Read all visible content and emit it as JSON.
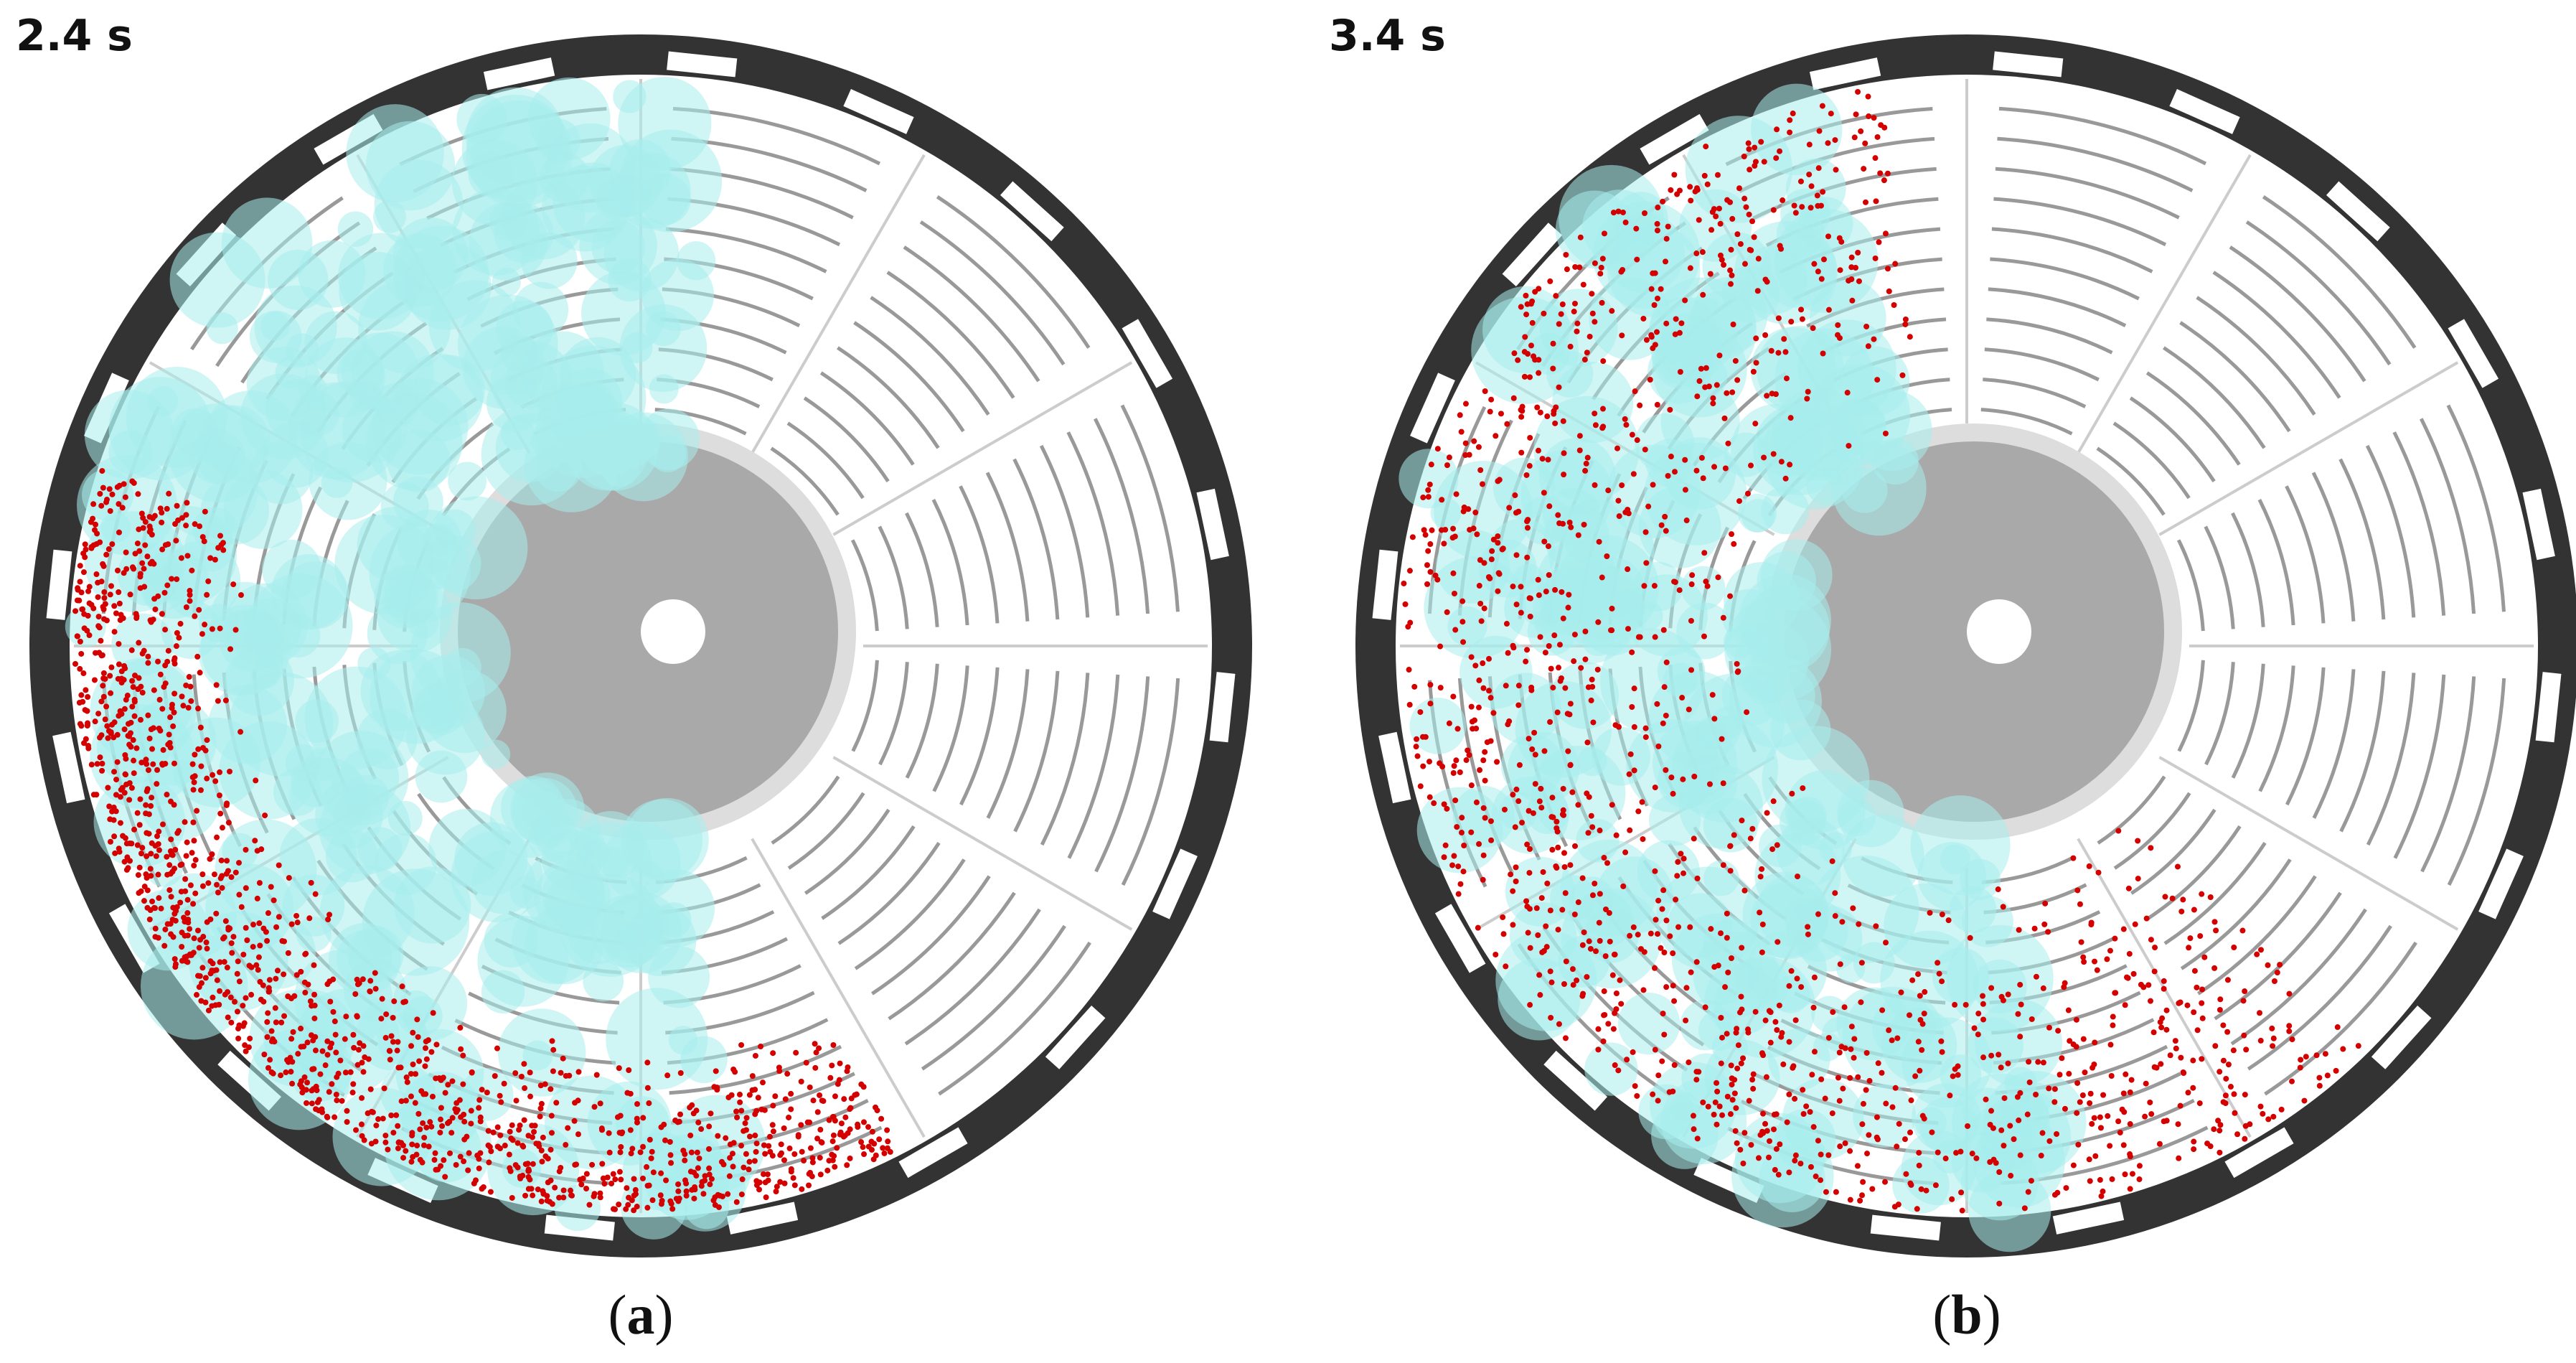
{
  "panels": [
    {
      "time": "2.4 s",
      "caption": [
        "(",
        "a",
        ")"
      ]
    },
    {
      "time": "3.4 s",
      "caption": [
        "(",
        "b",
        ")"
      ]
    }
  ]
}
